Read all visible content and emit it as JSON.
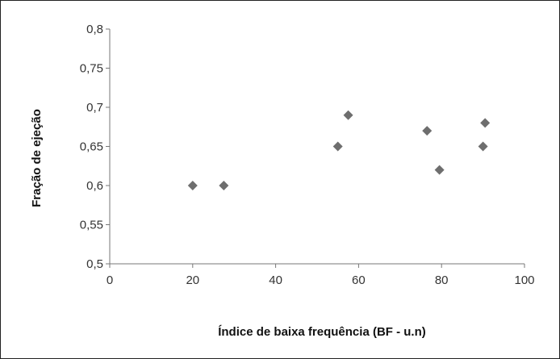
{
  "chart_data": {
    "type": "scatter",
    "title": "",
    "xlabel": "Índice de baixa frequência (BF - u.n)",
    "ylabel": "Fração de ejeção",
    "xlim": [
      0,
      100
    ],
    "ylim": [
      0.5,
      0.8
    ],
    "x_ticks": [
      0,
      20,
      40,
      60,
      80,
      100
    ],
    "x_tick_labels": [
      "0",
      "20",
      "40",
      "60",
      "80",
      "100"
    ],
    "y_ticks": [
      0.5,
      0.55,
      0.6,
      0.65,
      0.7,
      0.75,
      0.8
    ],
    "y_tick_labels": [
      "0,5",
      "0,55",
      "0,6",
      "0,65",
      "0,7",
      "0,75",
      "0,8"
    ],
    "grid": false,
    "legend": "none",
    "marker": "diamond",
    "marker_color": "#6e6e6e",
    "points": [
      {
        "x": 20,
        "y": 0.6
      },
      {
        "x": 27.5,
        "y": 0.6
      },
      {
        "x": 55,
        "y": 0.65
      },
      {
        "x": 57.5,
        "y": 0.69
      },
      {
        "x": 76.5,
        "y": 0.67
      },
      {
        "x": 79.5,
        "y": 0.62
      },
      {
        "x": 90,
        "y": 0.65
      },
      {
        "x": 90.5,
        "y": 0.68
      }
    ]
  }
}
